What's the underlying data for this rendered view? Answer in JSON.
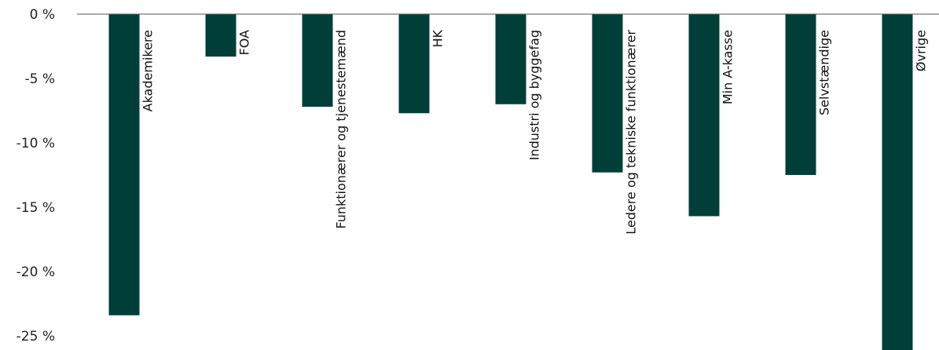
{
  "chart_data": {
    "type": "bar",
    "title": "",
    "xlabel": "",
    "ylabel": "",
    "categories": [
      "Akademikere",
      "FOA",
      "Funktionærer og tjenestemænd",
      "HK",
      "Industri og byggefag",
      "Ledere og tekniske funktionærer",
      "Min A-kasse",
      "Selvstændige",
      "Øvrige"
    ],
    "values": [
      -23.4,
      -3.3,
      -7.2,
      -7.7,
      -7.0,
      -12.3,
      -15.7,
      -12.5,
      -26.4
    ],
    "ylim": [
      -26.5,
      0
    ],
    "yticks": [
      {
        "value": 0,
        "label": "0 %"
      },
      {
        "value": -5,
        "label": "-5 %"
      },
      {
        "value": -10,
        "label": "-10 %"
      },
      {
        "value": -15,
        "label": "-15 %"
      },
      {
        "value": -20,
        "label": "-20 %"
      },
      {
        "value": -25,
        "label": "-25 %"
      }
    ],
    "grid": false,
    "legend": "none",
    "bar_color": "#003f38",
    "axis_color": "#555555"
  }
}
